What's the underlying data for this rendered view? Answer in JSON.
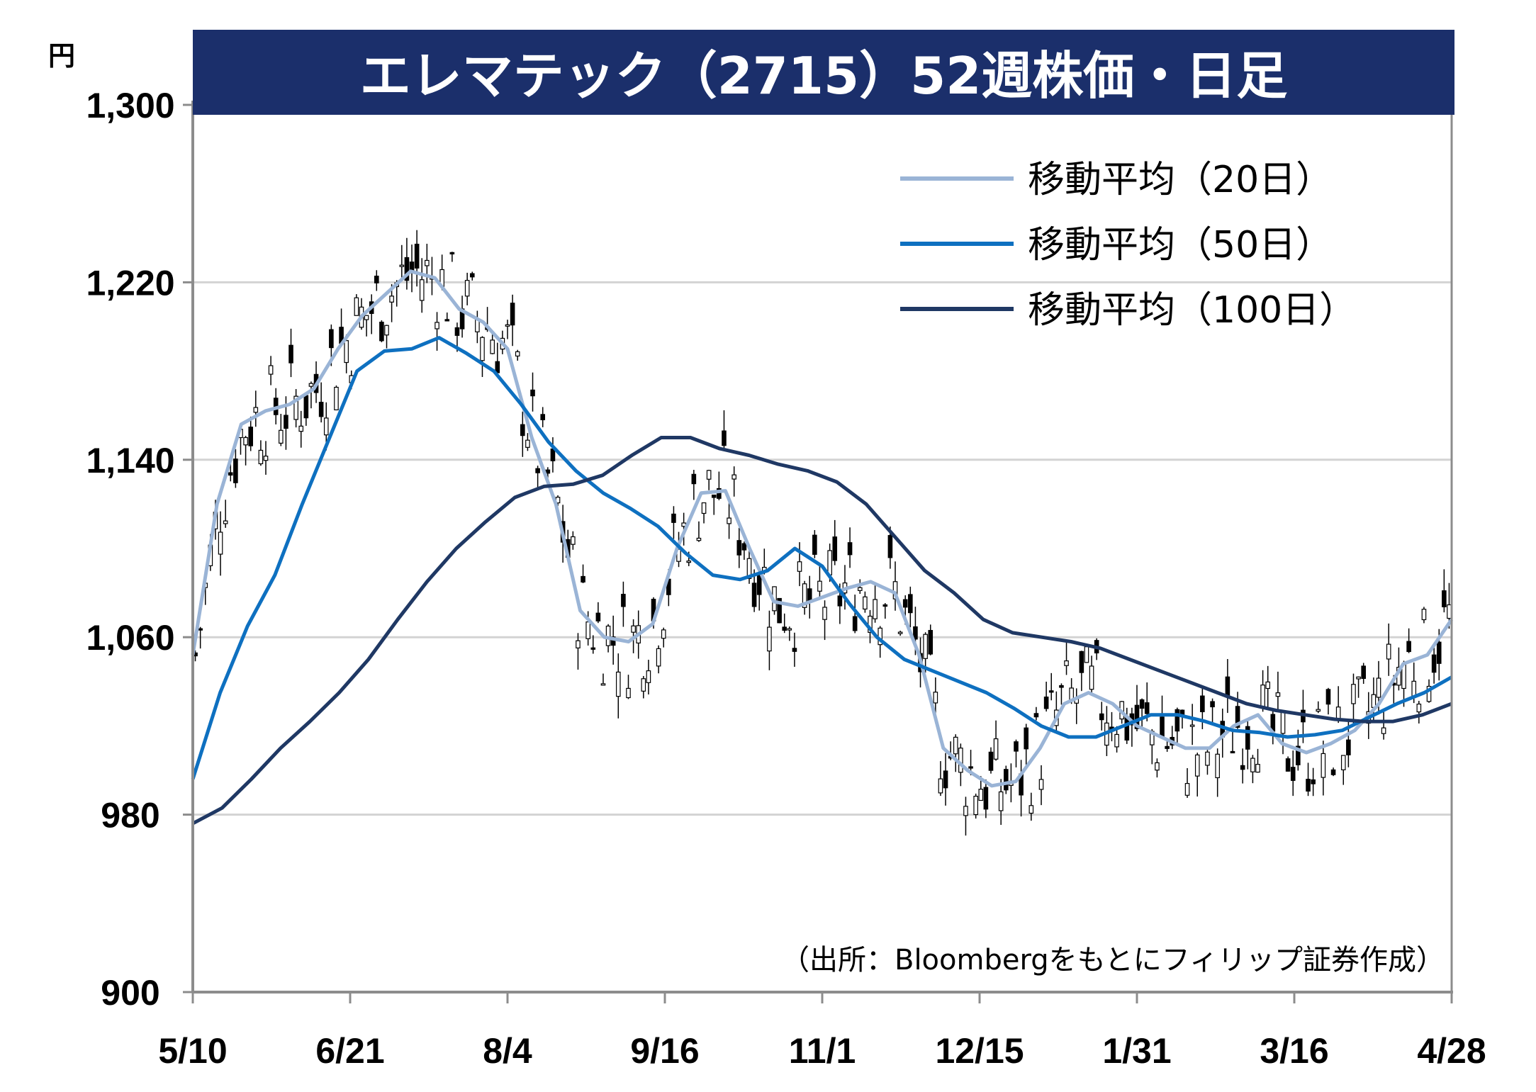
{
  "chart_data": {
    "type": "candlestick",
    "title": "エレマテック（2715）52週株価・日足",
    "ylabel": "円",
    "ylim": [
      900,
      1300
    ],
    "y_ticks": [
      "900",
      "980",
      "1,060",
      "1,140",
      "1,220",
      "1,300"
    ],
    "y_tick_values": [
      900,
      980,
      1060,
      1140,
      1220,
      1300
    ],
    "x_ticks": [
      "5/10",
      "6/21",
      "8/4",
      "9/16",
      "11/1",
      "12/15",
      "1/31",
      "3/16",
      "4/28"
    ],
    "grid": true,
    "legend_position": "top-right",
    "source": "（出所：Bloombergをもとにフィリップ証券作成）",
    "colors": {
      "title_bg": "#1b2f6b",
      "grid": "#d3d3d3",
      "axis": "#8c8c8c",
      "up_body": "#ffffff",
      "down_body": "#000000",
      "ma20": "#9ab4d6",
      "ma50": "#0e70c0",
      "ma100": "#1f3864"
    },
    "series": [
      {
        "name": "移動平均（20日）",
        "color": "#9ab4d6",
        "values": [
          1052,
          1120,
          1156,
          1162,
          1165,
          1172,
          1190,
          1205,
          1215,
          1225,
          1222,
          1208,
          1202,
          1190,
          1150,
          1120,
          1072,
          1060,
          1058,
          1066,
          1100,
          1125,
          1126,
          1100,
          1076,
          1074,
          1078,
          1082,
          1085,
          1080,
          1052,
          1010,
          1000,
          993,
          995,
          1010,
          1030,
          1035,
          1030,
          1020,
          1015,
          1010,
          1010,
          1020,
          1025,
          1012,
          1008,
          1012,
          1018,
          1030,
          1048,
          1052,
          1068
        ]
      },
      {
        "name": "移動平均（50日）",
        "color": "#0e70c0",
        "values": [
          996,
          1035,
          1065,
          1088,
          1120,
          1150,
          1180,
          1189,
          1190,
          1195,
          1188,
          1180,
          1165,
          1148,
          1135,
          1125,
          1118,
          1110,
          1098,
          1088,
          1086,
          1090,
          1100,
          1092,
          1075,
          1060,
          1050,
          1045,
          1040,
          1035,
          1028,
          1020,
          1015,
          1015,
          1020,
          1025,
          1025,
          1022,
          1018,
          1017,
          1015,
          1016,
          1018,
          1024,
          1030,
          1035,
          1042
        ]
      },
      {
        "name": "移動平均（100日）",
        "color": "#1f3864",
        "values": [
          976,
          983,
          996,
          1010,
          1022,
          1035,
          1050,
          1068,
          1085,
          1100,
          1112,
          1123,
          1128,
          1129,
          1133,
          1142,
          1150,
          1150,
          1145,
          1142,
          1138,
          1135,
          1130,
          1120,
          1105,
          1090,
          1080,
          1068,
          1062,
          1060,
          1058,
          1055,
          1050,
          1045,
          1040,
          1035,
          1030,
          1027,
          1025,
          1023,
          1022,
          1022,
          1025,
          1030
        ]
      }
    ]
  }
}
